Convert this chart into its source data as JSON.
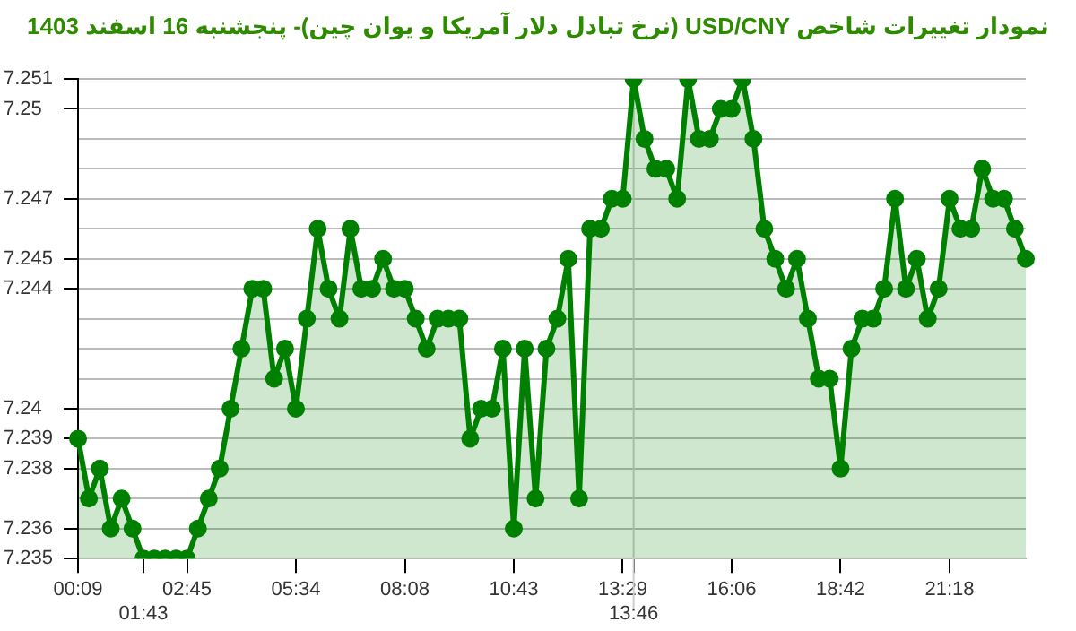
{
  "chart_data": {
    "type": "area",
    "title": "نمودار تغییرات شاخص USD/CNY (نرخ تبادل دلار آمریکا و یوان چین)- پنجشنبه 16 اسفند 1403",
    "categories": [
      "00:09",
      null,
      null,
      null,
      null,
      null,
      "01:43",
      null,
      null,
      null,
      "02:45",
      null,
      null,
      null,
      null,
      null,
      null,
      null,
      null,
      null,
      "05:34",
      null,
      null,
      null,
      null,
      null,
      null,
      null,
      null,
      null,
      "08:08",
      null,
      null,
      null,
      null,
      null,
      null,
      null,
      null,
      null,
      "10:43",
      null,
      null,
      null,
      null,
      null,
      null,
      null,
      null,
      null,
      "13:29",
      "13:46",
      null,
      null,
      null,
      null,
      null,
      null,
      null,
      null,
      "16:06",
      null,
      null,
      null,
      null,
      null,
      null,
      null,
      null,
      null,
      "18:42",
      null,
      null,
      null,
      null,
      null,
      null,
      null,
      null,
      null,
      "21:18",
      null,
      null,
      null,
      null,
      null,
      null,
      null
    ],
    "series": [
      {
        "color": "#008000",
        "values": [
          7.239,
          7.237,
          7.238,
          7.236,
          7.237,
          7.236,
          7.235,
          7.235,
          7.235,
          7.235,
          7.235,
          7.236,
          7.237,
          7.238,
          7.24,
          7.242,
          7.244,
          7.244,
          7.241,
          7.242,
          7.24,
          7.243,
          7.246,
          7.244,
          7.243,
          7.246,
          7.244,
          7.244,
          7.245,
          7.244,
          7.244,
          7.243,
          7.242,
          7.243,
          7.243,
          7.243,
          7.239,
          7.24,
          7.24,
          7.242,
          7.236,
          7.242,
          7.237,
          7.242,
          7.243,
          7.245,
          7.237,
          7.246,
          7.246,
          7.247,
          7.247,
          7.251,
          7.249,
          7.248,
          7.248,
          7.247,
          7.251,
          7.249,
          7.249,
          7.25,
          7.25,
          7.251,
          7.249,
          7.246,
          7.245,
          7.244,
          7.245,
          7.243,
          7.241,
          7.241,
          7.238,
          7.242,
          7.243,
          7.243,
          7.244,
          7.247,
          7.244,
          7.245,
          7.243,
          7.244,
          7.247,
          7.246,
          7.246,
          7.248,
          7.247,
          7.247,
          7.246,
          7.245
        ]
      }
    ],
    "ylim": [
      7.235,
      7.251
    ],
    "yticks": [
      7.235,
      7.236,
      {
        "value": 7.237,
        "label": null
      },
      7.238,
      7.239,
      7.24,
      {
        "value": 7.241,
        "label": null
      },
      {
        "value": 7.242,
        "label": null
      },
      {
        "value": 7.243,
        "label": null
      },
      7.244,
      7.245,
      {
        "value": 7.246,
        "label": null
      },
      7.247,
      {
        "value": 7.248,
        "label": null
      },
      {
        "value": 7.249,
        "label": null
      },
      7.25,
      7.251
    ],
    "ref_lines": [
      {
        "axis": "x",
        "value": "13:46",
        "color": "#c8d0c8"
      }
    ],
    "grid": "y",
    "marker": "circle",
    "line_style": "solid"
  }
}
